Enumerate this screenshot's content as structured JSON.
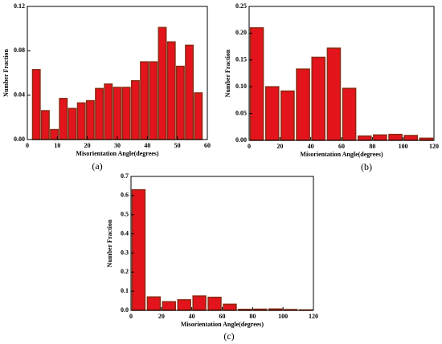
{
  "chart_data": [
    {
      "type": "histogram",
      "label": "(a)",
      "xlabel": "Misorientation Angle(degrees)",
      "ylabel": "Number Fraction",
      "bins": [
        1.5,
        4.5,
        7.5,
        10.5,
        13.5,
        16.5,
        19.5,
        22.5,
        25.5,
        28.5,
        31.5,
        34.5,
        37.5,
        40.5,
        43.5,
        46.5,
        49.5,
        52.5,
        55.5,
        58.5
      ],
      "values": [
        0.063,
        0.026,
        0.009,
        0.037,
        0.028,
        0.033,
        0.035,
        0.046,
        0.05,
        0.047,
        0.047,
        0.053,
        0.07,
        0.07,
        0.101,
        0.088,
        0.066,
        0.085,
        0.042
      ],
      "color": "#e3141c",
      "edge": "#8b2a12",
      "xlim": [
        0,
        60
      ],
      "xticks": [
        0,
        10,
        20,
        30,
        40,
        50,
        60
      ],
      "ylim": [
        0,
        0.12
      ],
      "yticks": [
        {
          "value": 0,
          "label": "0.00"
        },
        0.04,
        0.08,
        0.12
      ]
    },
    {
      "type": "histogram",
      "label": "(b)",
      "xlabel": "Misorientation Angle(degrees)",
      "ylabel": "Number Fraction",
      "bins": [
        0,
        10,
        20,
        30,
        40,
        50,
        60,
        70,
        80,
        90,
        100,
        110,
        120
      ],
      "values": [
        0.21,
        0.1,
        0.092,
        0.133,
        0.155,
        0.172,
        0.097,
        0.008,
        0.01,
        0.011,
        0.009,
        0.004
      ],
      "color": "#e3141c",
      "edge": "#8b2a12",
      "xlim": [
        0,
        120
      ],
      "xticks": [
        0,
        20,
        40,
        60,
        80,
        100,
        120
      ],
      "ylim": [
        0,
        0.25
      ],
      "yticks": [
        {
          "value": 0,
          "label": "0.00"
        },
        0.05,
        {
          "value": 0.1,
          "label": "0.10"
        },
        0.15,
        {
          "value": 0.2,
          "label": "0.20"
        },
        0.25
      ]
    },
    {
      "type": "histogram",
      "label": "(c)",
      "xlabel": "Misorientation Angle(degrees)",
      "ylabel": "Number Fraction",
      "bins": [
        0,
        10,
        20,
        30,
        40,
        50,
        60,
        70,
        80,
        90,
        100,
        110,
        120
      ],
      "values": [
        0.63,
        0.07,
        0.045,
        0.055,
        0.075,
        0.068,
        0.032,
        0.005,
        0.006,
        0.007,
        0.004,
        0.002
      ],
      "color": "#e3141c",
      "edge": "#8b2a12",
      "xlim": [
        0,
        120
      ],
      "xticks": [
        0,
        20,
        40,
        60,
        80,
        100,
        120
      ],
      "ylim": [
        0,
        0.7
      ],
      "yticks": [
        {
          "value": 0,
          "label": "0.0"
        },
        0.1,
        0.2,
        0.3,
        0.4,
        0.5,
        0.6,
        0.7
      ]
    }
  ]
}
